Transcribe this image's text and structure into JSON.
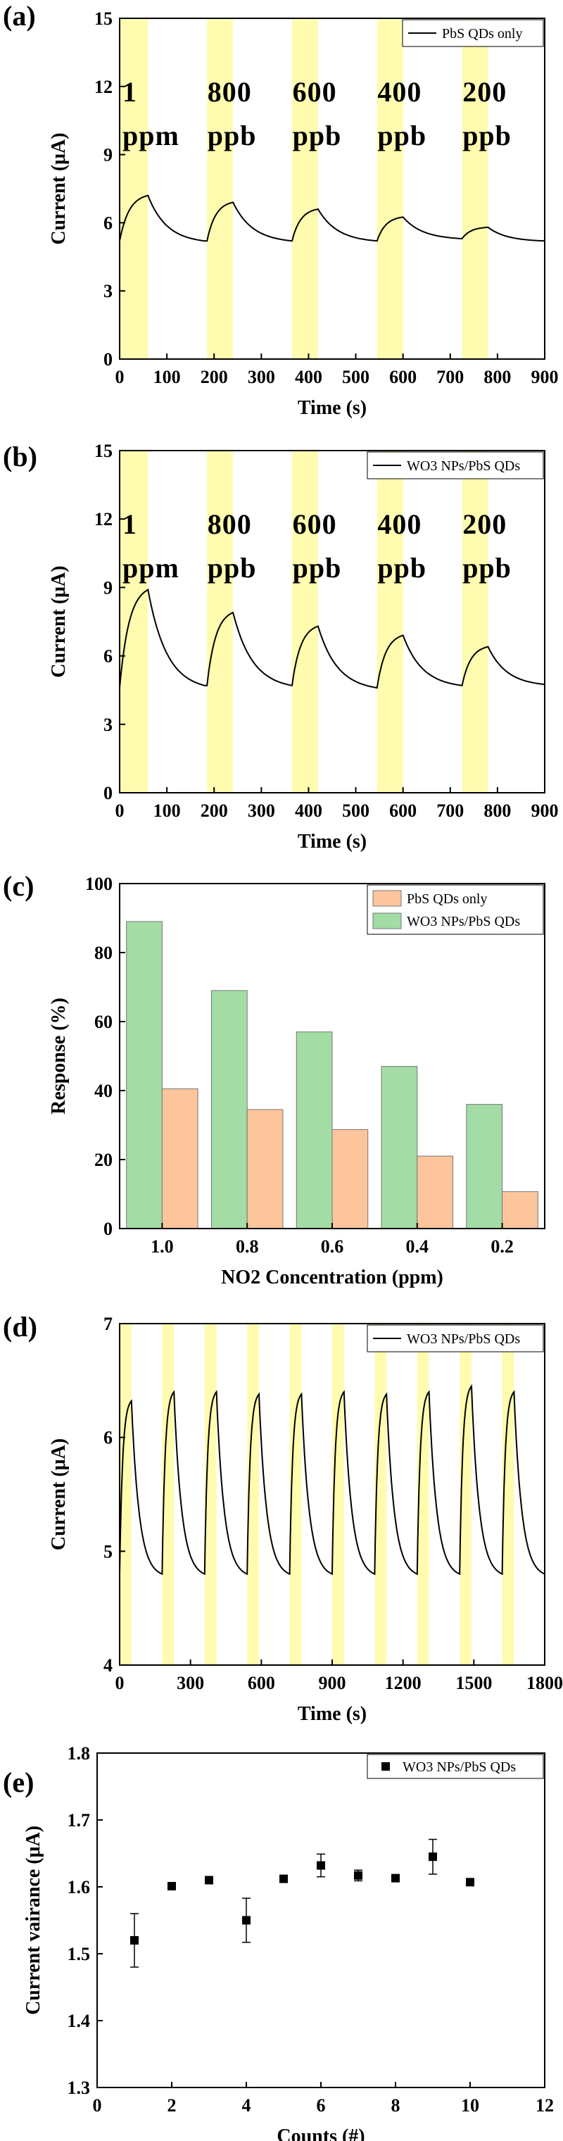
{
  "chart_data": [
    {
      "panel": "(a)",
      "type": "line",
      "xlabel": "Time (s)",
      "ylabel": "Current (μA)",
      "xlim": [
        0,
        900
      ],
      "ylim": [
        0,
        15
      ],
      "xticks": [
        0,
        100,
        200,
        300,
        400,
        500,
        600,
        700,
        800,
        900
      ],
      "yticks": [
        0,
        3,
        6,
        9,
        12,
        15
      ],
      "legend": "top-right",
      "series": [
        {
          "name": "PbS QDs only",
          "color": "#000000",
          "cycles": [
            {
              "on_start": 0,
              "on_end": 60,
              "base": 5.2,
              "peak": 7.2,
              "recovery_end": 180
            },
            {
              "on_start": 185,
              "on_end": 240,
              "base": 5.2,
              "peak": 6.9,
              "recovery_end": 365
            },
            {
              "on_start": 365,
              "on_end": 420,
              "base": 5.2,
              "peak": 6.6,
              "recovery_end": 545
            },
            {
              "on_start": 545,
              "on_end": 600,
              "base": 5.2,
              "peak": 6.25,
              "recovery_end": 725
            },
            {
              "on_start": 725,
              "on_end": 780,
              "base": 5.3,
              "peak": 5.8,
              "recovery_end": 900
            }
          ],
          "final_value": 5.2
        }
      ],
      "highlight_color": "#fffcb0",
      "annotations": [
        {
          "line1": "1",
          "line2": "ppm",
          "x": 0
        },
        {
          "line1": "800",
          "line2": "ppb",
          "x": 180
        },
        {
          "line1": "600",
          "line2": "ppb",
          "x": 360
        },
        {
          "line1": "400",
          "line2": "ppb",
          "x": 540
        },
        {
          "line1": "200",
          "line2": "ppb",
          "x": 720
        }
      ]
    },
    {
      "panel": "(b)",
      "type": "line",
      "xlabel": "Time (s)",
      "ylabel": "Current (μA)",
      "xlim": [
        0,
        900
      ],
      "ylim": [
        0,
        15
      ],
      "xticks": [
        0,
        100,
        200,
        300,
        400,
        500,
        600,
        700,
        800,
        900
      ],
      "yticks": [
        0,
        3,
        6,
        9,
        12,
        15
      ],
      "legend": "top-right",
      "series": [
        {
          "name": "WO3 NPs/PbS QDs",
          "color": "#000000",
          "cycles": [
            {
              "on_start": 0,
              "on_end": 60,
              "base": 4.6,
              "peak": 8.9,
              "recovery_end": 180
            },
            {
              "on_start": 185,
              "on_end": 240,
              "base": 4.7,
              "peak": 7.9,
              "recovery_end": 365
            },
            {
              "on_start": 365,
              "on_end": 420,
              "base": 4.7,
              "peak": 7.3,
              "recovery_end": 545
            },
            {
              "on_start": 545,
              "on_end": 600,
              "base": 4.6,
              "peak": 6.9,
              "recovery_end": 725
            },
            {
              "on_start": 725,
              "on_end": 780,
              "base": 4.7,
              "peak": 6.4,
              "recovery_end": 900
            }
          ],
          "final_value": 4.75
        }
      ],
      "highlight_color": "#fffcb0",
      "annotations": [
        {
          "line1": "1",
          "line2": "ppm",
          "x": 0
        },
        {
          "line1": "800",
          "line2": "ppb",
          "x": 180
        },
        {
          "line1": "600",
          "line2": "ppb",
          "x": 360
        },
        {
          "line1": "400",
          "line2": "ppb",
          "x": 540
        },
        {
          "line1": "200",
          "line2": "ppb",
          "x": 720
        }
      ]
    },
    {
      "panel": "(c)",
      "type": "bar",
      "xlabel": "NO2 Concentration (ppm)",
      "ylabel": "Response (%)",
      "categories": [
        "1.0",
        "0.8",
        "0.6",
        "0.4",
        "0.2"
      ],
      "ylim": [
        0,
        100
      ],
      "yticks": [
        0,
        20,
        40,
        60,
        80,
        100
      ],
      "legend": "top-right",
      "series": [
        {
          "name": "WO3 NPs/PbS QDs",
          "color": "#a3dca4",
          "values": [
            89,
            69,
            57,
            47,
            36
          ]
        },
        {
          "name": "PbS QDs only",
          "color": "#fdc59c",
          "values": [
            40.5,
            34.5,
            28.7,
            21,
            10.7
          ]
        }
      ],
      "legend_order": [
        "PbS QDs only",
        "WO3 NPs/PbS QDs"
      ]
    },
    {
      "panel": "(d)",
      "type": "line",
      "xlabel": "Time (s)",
      "ylabel": "Current (μA)",
      "xlim": [
        0,
        1800
      ],
      "ylim": [
        4,
        7
      ],
      "xticks": [
        0,
        300,
        600,
        900,
        1200,
        1500,
        1800
      ],
      "yticks": [
        4,
        5,
        6,
        7
      ],
      "legend": "top-right",
      "series": [
        {
          "name": "WO3 NPs/PbS QDs",
          "color": "#000000",
          "cycle_period": 180,
          "on_duration": 50,
          "n_cycles": 10,
          "base": 4.8,
          "peaks": [
            6.32,
            6.4,
            6.4,
            6.38,
            6.38,
            6.4,
            6.38,
            6.4,
            6.45,
            6.4
          ]
        }
      ],
      "highlight_color": "#fffcb0"
    },
    {
      "panel": "(e)",
      "type": "scatter",
      "xlabel": "Counts (#)",
      "ylabel": "Current vairance (μA)",
      "xlim": [
        0,
        12
      ],
      "ylim": [
        1.3,
        1.8
      ],
      "xticks": [
        0,
        2,
        4,
        6,
        8,
        10,
        12
      ],
      "yticks": [
        1.3,
        1.4,
        1.5,
        1.6,
        1.7,
        1.8
      ],
      "legend": "top-right",
      "series": [
        {
          "name": "WO3 NPs/PbS QDs",
          "color": "#000000",
          "x": [
            1,
            2,
            3,
            4,
            5,
            6,
            7,
            8,
            9,
            10
          ],
          "y": [
            1.52,
            1.601,
            1.61,
            1.55,
            1.612,
            1.632,
            1.617,
            1.613,
            1.645,
            1.607
          ],
          "yerr": [
            0.04,
            0.003,
            0.003,
            0.033,
            0.005,
            0.017,
            0.008,
            0.005,
            0.026,
            0.003
          ]
        }
      ]
    }
  ]
}
